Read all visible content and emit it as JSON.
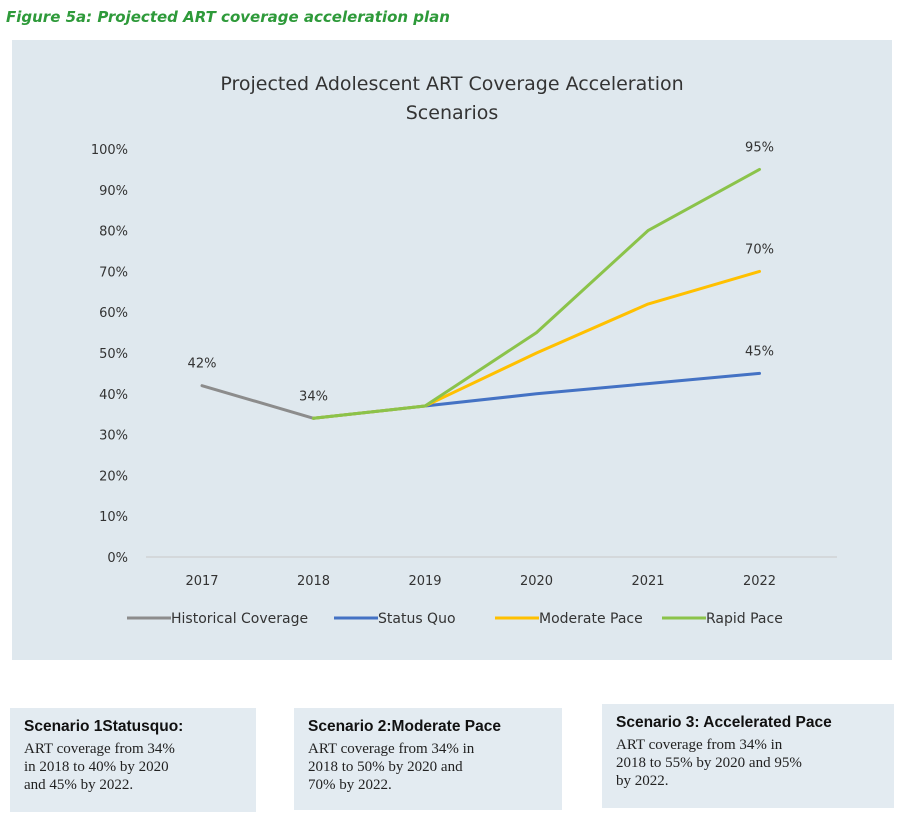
{
  "caption": "Figure 5a: Projected ART coverage acceleration plan",
  "chart_data": {
    "type": "line",
    "title_lines": [
      "Projected Adolescent ART Coverage Acceleration",
      "Scenarios"
    ],
    "categories": [
      "2017",
      "2018",
      "2019",
      "2020",
      "2021",
      "2022"
    ],
    "y_ticks": [
      "0%",
      "10%",
      "20%",
      "30%",
      "40%",
      "50%",
      "60%",
      "70%",
      "80%",
      "90%",
      "100%"
    ],
    "ylim": [
      0,
      100
    ],
    "grid": false,
    "legend_position": "bottom",
    "series": [
      {
        "name": "Historical Coverage",
        "color": "#8c8c8c",
        "values": [
          42,
          34,
          null,
          null,
          null,
          null
        ]
      },
      {
        "name": "Status Quo",
        "color": "#4472c4",
        "values": [
          null,
          34,
          37,
          40,
          42.5,
          45
        ]
      },
      {
        "name": "Moderate Pace",
        "color": "#ffc000",
        "values": [
          null,
          34,
          37,
          50,
          62,
          70
        ]
      },
      {
        "name": "Rapid Pace",
        "color": "#8bc34a",
        "values": [
          null,
          34,
          37,
          55,
          80,
          95
        ]
      }
    ],
    "data_labels": [
      {
        "category": "2017",
        "value": 42,
        "text": "42%"
      },
      {
        "category": "2018",
        "value": 34,
        "text": "34%"
      },
      {
        "category": "2022",
        "value": 95,
        "text": "95%"
      },
      {
        "category": "2022",
        "value": 70,
        "text": "70%"
      },
      {
        "category": "2022",
        "value": 45,
        "text": "45%"
      }
    ]
  },
  "scenarios": [
    {
      "title": "Scenario 1Statusquo:",
      "body": "ART coverage from 34%\nin 2018 to 40% by 2020\nand 45% by 2022."
    },
    {
      "title": "Scenario 2:Moderate Pace",
      "body": "ART coverage from 34% in\n2018 to 50% by 2020 and\n70% by 2022."
    },
    {
      "title": "Scenario 3: Accelerated Pace",
      "body": "ART coverage from 34% in\n2018 to 55% by 2020 and 95%\nby 2022."
    }
  ]
}
